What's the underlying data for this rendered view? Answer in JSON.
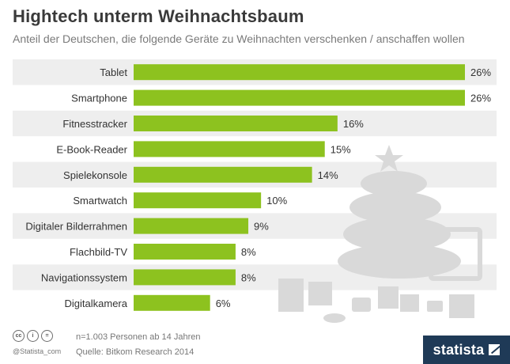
{
  "title": "Hightech unterm Weihnachtsbaum",
  "subtitle": "Anteil der Deutschen, die folgende Geräte zu Weihnachten verschenken / anschaffen wollen",
  "footer": {
    "sample": "n=1.003 Personen ab 14 Jahren",
    "source": "Quelle: Bitkom Research 2014",
    "handle": "@Statista_com",
    "brand": "statista",
    "license_badges": [
      "cc",
      "i",
      "="
    ]
  },
  "colors": {
    "bar": "#8dc21f",
    "row_band": "#eeeeee",
    "illustration": "#d9d9d9"
  },
  "chart_data": {
    "type": "bar",
    "orientation": "horizontal",
    "categories": [
      "Tablet",
      "Smartphone",
      "Fitnesstracker",
      "E-Book-Reader",
      "Spielekonsole",
      "Smartwatch",
      "Digitaler Bilderrahmen",
      "Flachbild-TV",
      "Navigationssystem",
      "Digitalkamera"
    ],
    "values": [
      26,
      26,
      16,
      15,
      14,
      10,
      9,
      8,
      8,
      6
    ],
    "value_labels": [
      "26%",
      "26%",
      "16%",
      "15%",
      "14%",
      "10%",
      "9%",
      "8%",
      "8%",
      "6%"
    ],
    "unit": "%",
    "xlim": [
      0,
      26
    ],
    "grid": false,
    "legend": "none"
  }
}
